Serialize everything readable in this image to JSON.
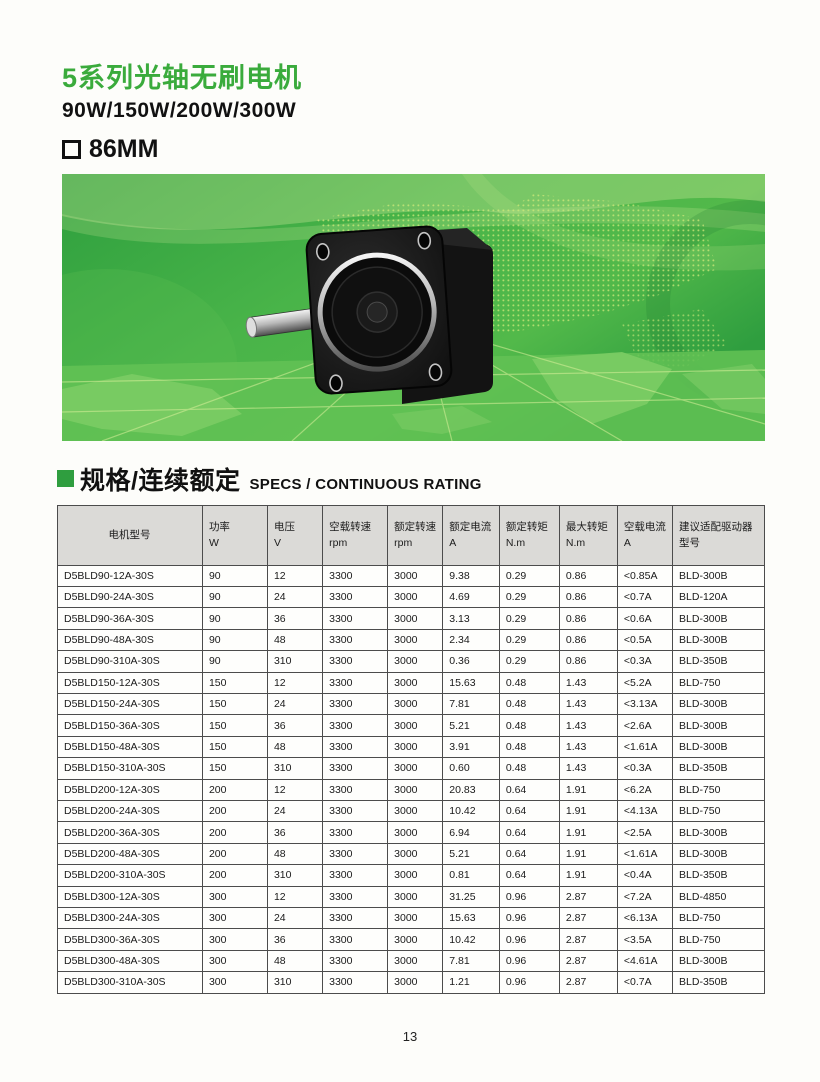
{
  "page": {
    "page_number": "13"
  },
  "colors": {
    "accent_green": "#3aab3c",
    "section_bullet_green": "#2f9e3f",
    "banner_green_dark": "#2e9f3e",
    "banner_green_mid": "#49b449",
    "banner_green_light": "#6fc75c",
    "table_header_bg": "#dbdad7",
    "table_border": "#4c4c4c"
  },
  "header": {
    "title": "5系列光轴无刷电机",
    "subtitle": "90W/150W/200W/300W",
    "frame_size": "86MM",
    "frame_icon": "square-outline"
  },
  "banner": {
    "image_desc": "black brushless motor with silver shaft on green world-map background"
  },
  "section": {
    "title_cn": "规格/连续额定",
    "title_en": "SPECS / CONTINUOUS RATING"
  },
  "table": {
    "columns": [
      {
        "label": "电机型号",
        "unit": ""
      },
      {
        "label": "功率",
        "unit": "W"
      },
      {
        "label": "电压",
        "unit": "V"
      },
      {
        "label": "空载转速",
        "unit": "rpm"
      },
      {
        "label": "额定转速",
        "unit": "rpm"
      },
      {
        "label": "额定电流",
        "unit": "A"
      },
      {
        "label": "额定转矩",
        "unit": "N.m"
      },
      {
        "label": "最大转矩",
        "unit": "N.m"
      },
      {
        "label": "空载电流",
        "unit": "A"
      },
      {
        "label": "建议适配驱动器型号",
        "unit": ""
      }
    ],
    "rows": [
      [
        "D5BLD90-12A-30S",
        "90",
        "12",
        "3300",
        "3000",
        "9.38",
        "0.29",
        "0.86",
        "<0.85A",
        "BLD-300B"
      ],
      [
        "D5BLD90-24A-30S",
        "90",
        "24",
        "3300",
        "3000",
        "4.69",
        "0.29",
        "0.86",
        "<0.7A",
        "BLD-120A"
      ],
      [
        "D5BLD90-36A-30S",
        "90",
        "36",
        "3300",
        "3000",
        "3.13",
        "0.29",
        "0.86",
        "<0.6A",
        "BLD-300B"
      ],
      [
        "D5BLD90-48A-30S",
        "90",
        "48",
        "3300",
        "3000",
        "2.34",
        "0.29",
        "0.86",
        "<0.5A",
        "BLD-300B"
      ],
      [
        "D5BLD90-310A-30S",
        "90",
        "310",
        "3300",
        "3000",
        "0.36",
        "0.29",
        "0.86",
        "<0.3A",
        "BLD-350B"
      ],
      [
        "D5BLD150-12A-30S",
        "150",
        "12",
        "3300",
        "3000",
        "15.63",
        "0.48",
        "1.43",
        "<5.2A",
        "BLD-750"
      ],
      [
        "D5BLD150-24A-30S",
        "150",
        "24",
        "3300",
        "3000",
        "7.81",
        "0.48",
        "1.43",
        "<3.13A",
        "BLD-300B"
      ],
      [
        "D5BLD150-36A-30S",
        "150",
        "36",
        "3300",
        "3000",
        "5.21",
        "0.48",
        "1.43",
        "<2.6A",
        "BLD-300B"
      ],
      [
        "D5BLD150-48A-30S",
        "150",
        "48",
        "3300",
        "3000",
        "3.91",
        "0.48",
        "1.43",
        "<1.61A",
        "BLD-300B"
      ],
      [
        "D5BLD150-310A-30S",
        "150",
        "310",
        "3300",
        "3000",
        "0.60",
        "0.48",
        "1.43",
        "<0.3A",
        "BLD-350B"
      ],
      [
        "D5BLD200-12A-30S",
        "200",
        "12",
        "3300",
        "3000",
        "20.83",
        "0.64",
        "1.91",
        "<6.2A",
        "BLD-750"
      ],
      [
        "D5BLD200-24A-30S",
        "200",
        "24",
        "3300",
        "3000",
        "10.42",
        "0.64",
        "1.91",
        "<4.13A",
        "BLD-750"
      ],
      [
        "D5BLD200-36A-30S",
        "200",
        "36",
        "3300",
        "3000",
        "6.94",
        "0.64",
        "1.91",
        "<2.5A",
        "BLD-300B"
      ],
      [
        "D5BLD200-48A-30S",
        "200",
        "48",
        "3300",
        "3000",
        "5.21",
        "0.64",
        "1.91",
        "<1.61A",
        "BLD-300B"
      ],
      [
        "D5BLD200-310A-30S",
        "200",
        "310",
        "3300",
        "3000",
        "0.81",
        "0.64",
        "1.91",
        "<0.4A",
        "BLD-350B"
      ],
      [
        "D5BLD300-12A-30S",
        "300",
        "12",
        "3300",
        "3000",
        "31.25",
        "0.96",
        "2.87",
        "<7.2A",
        "BLD-4850"
      ],
      [
        "D5BLD300-24A-30S",
        "300",
        "24",
        "3300",
        "3000",
        "15.63",
        "0.96",
        "2.87",
        "<6.13A",
        "BLD-750"
      ],
      [
        "D5BLD300-36A-30S",
        "300",
        "36",
        "3300",
        "3000",
        "10.42",
        "0.96",
        "2.87",
        "<3.5A",
        "BLD-750"
      ],
      [
        "D5BLD300-48A-30S",
        "300",
        "48",
        "3300",
        "3000",
        "7.81",
        "0.96",
        "2.87",
        "<4.61A",
        "BLD-300B"
      ],
      [
        "D5BLD300-310A-30S",
        "300",
        "310",
        "3300",
        "3000",
        "1.21",
        "0.96",
        "2.87",
        "<0.7A",
        "BLD-350B"
      ]
    ]
  }
}
